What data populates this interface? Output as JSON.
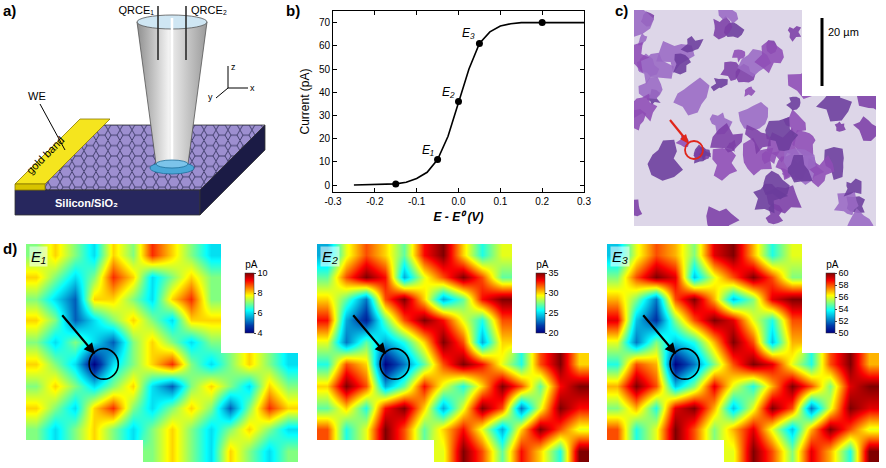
{
  "panel_labels": [
    "a)",
    "b)",
    "c)",
    "d)"
  ],
  "diagram": {
    "labels": {
      "qrce1": "QRCE₁",
      "qrce2": "QRCE₂",
      "we": "WE",
      "band": "gold band",
      "substrate": "Silicon/SiO₂",
      "axis_z": "z",
      "axis_y": "y",
      "axis_x": "x"
    }
  },
  "micrograph": {
    "scale_bar": "20 µm"
  },
  "chart_data": [
    {
      "type": "line",
      "color": "#000000",
      "x": [
        -0.25,
        -0.2,
        -0.15,
        -0.125,
        -0.1,
        -0.075,
        -0.05,
        -0.025,
        0,
        0.025,
        0.05,
        0.075,
        0.1,
        0.125,
        0.15,
        0.2,
        0.25,
        0.3
      ],
      "values": [
        0,
        0.1,
        0.5,
        1.2,
        2.8,
        5.5,
        11,
        21,
        36,
        50,
        61,
        66,
        68.5,
        69.5,
        70,
        70,
        70,
        70
      ],
      "marker_points": {
        "x": [
          -0.15,
          -0.05,
          0,
          0.05,
          0.2
        ],
        "values": [
          0.5,
          11,
          36,
          61,
          70
        ]
      },
      "marker": "circle",
      "x_label": "E - E⁰ (V)",
      "y_label": "Current (pA)",
      "xlim": [
        -0.3,
        0.3
      ],
      "xticks": [
        -0.3,
        -0.2,
        -0.1,
        {
          "value": 0,
          "label": "0.0"
        },
        0.1,
        0.2,
        0.3
      ],
      "ylim": [
        -3,
        75
      ],
      "yticks": [
        0,
        10,
        20,
        30,
        40,
        50,
        60,
        70
      ],
      "grid": false,
      "annotations": [
        {
          "x": -0.05,
          "y": 11,
          "text": "E₁"
        },
        {
          "x": 0,
          "y": 36,
          "text": "E₂"
        },
        {
          "x": 0.05,
          "y": 61,
          "text": "E₃"
        }
      ]
    },
    {
      "type": "heatmap",
      "title": "E₁",
      "tick_labels": false,
      "color_range": [
        4,
        10
      ],
      "color_ticks": [
        4,
        6,
        8,
        10
      ],
      "color_title": "pA",
      "cells": [
        [
          7,
          8,
          7,
          6,
          8,
          7,
          9,
          8,
          7,
          6,
          null,
          null,
          null,
          null
        ],
        [
          8,
          7,
          6,
          7,
          9,
          8,
          6,
          7,
          8,
          7,
          null,
          null,
          null,
          null
        ],
        [
          7,
          6,
          5,
          8,
          8,
          7,
          6,
          8,
          9,
          7,
          null,
          null,
          null,
          null
        ],
        [
          8,
          7,
          5,
          6,
          7,
          8,
          7,
          6,
          8,
          8,
          null,
          null,
          null,
          null
        ],
        [
          7,
          6,
          7,
          6,
          5,
          7,
          8,
          7,
          6,
          7,
          null,
          null,
          null,
          null
        ],
        [
          8,
          7,
          6,
          4,
          6,
          7,
          8,
          9,
          7,
          6,
          7,
          8,
          7,
          6
        ],
        [
          7,
          8,
          7,
          6,
          7,
          8,
          6,
          5,
          7,
          8,
          7,
          6,
          8,
          7
        ],
        [
          8,
          7,
          6,
          8,
          9,
          7,
          6,
          7,
          8,
          7,
          5,
          7,
          9,
          8
        ],
        [
          7,
          6,
          7,
          8,
          7,
          6,
          7,
          8,
          7,
          6,
          7,
          8,
          7,
          6
        ],
        [
          null,
          null,
          null,
          null,
          null,
          null,
          7,
          8,
          7,
          6,
          8,
          7,
          6,
          7
        ]
      ]
    },
    {
      "type": "heatmap",
      "title": "E₂",
      "tick_labels": false,
      "color_range": [
        20,
        35
      ],
      "color_ticks": [
        20,
        25,
        30,
        35
      ],
      "color_title": "pA",
      "cells": [
        [
          24,
          29,
          32,
          30,
          27,
          33,
          35,
          30,
          26,
          29,
          null,
          null,
          null,
          null
        ],
        [
          27,
          32,
          35,
          33,
          24,
          29,
          32,
          35,
          32,
          27,
          null,
          null,
          null,
          null
        ],
        [
          30,
          27,
          23,
          32,
          35,
          30,
          24,
          27,
          33,
          35,
          null,
          null,
          null,
          null
        ],
        [
          33,
          24,
          21,
          27,
          32,
          35,
          33,
          29,
          26,
          32,
          null,
          null,
          null,
          null
        ],
        [
          29,
          23,
          27,
          24,
          26,
          30,
          35,
          32,
          24,
          30,
          null,
          null,
          null,
          null
        ],
        [
          26,
          32,
          30,
          20,
          23,
          27,
          32,
          35,
          33,
          29,
          26,
          32,
          35,
          30
        ],
        [
          30,
          35,
          32,
          24,
          27,
          33,
          29,
          26,
          30,
          35,
          32,
          27,
          33,
          35
        ],
        [
          27,
          30,
          26,
          33,
          35,
          30,
          24,
          29,
          35,
          32,
          23,
          29,
          35,
          33
        ],
        [
          32,
          26,
          29,
          35,
          32,
          27,
          30,
          33,
          29,
          24,
          30,
          35,
          32,
          29
        ],
        [
          null,
          null,
          null,
          null,
          null,
          null,
          29,
          35,
          32,
          27,
          33,
          30,
          26,
          35
        ]
      ]
    },
    {
      "type": "heatmap",
      "title": "E₃",
      "tick_labels": false,
      "color_range": [
        50,
        60
      ],
      "color_ticks": [
        50,
        52,
        54,
        56,
        58,
        60
      ],
      "color_title": "pA",
      "cells": [
        [
          53,
          56,
          58,
          57,
          55,
          59,
          60,
          57,
          54,
          56,
          null,
          null,
          null,
          null
        ],
        [
          55,
          58,
          60,
          59,
          53,
          56,
          58,
          60,
          58,
          55,
          null,
          null,
          null,
          null
        ],
        [
          57,
          55,
          52,
          58,
          60,
          57,
          53,
          55,
          59,
          60,
          null,
          null,
          null,
          null
        ],
        [
          59,
          53,
          51,
          55,
          58,
          60,
          59,
          56,
          54,
          58,
          null,
          null,
          null,
          null
        ],
        [
          56,
          52,
          55,
          53,
          54,
          57,
          60,
          58,
          53,
          57,
          null,
          null,
          null,
          null
        ],
        [
          54,
          58,
          57,
          50,
          52,
          55,
          58,
          60,
          59,
          56,
          54,
          58,
          60,
          57
        ],
        [
          57,
          60,
          58,
          53,
          55,
          59,
          56,
          54,
          57,
          60,
          58,
          55,
          59,
          60
        ],
        [
          55,
          57,
          54,
          59,
          60,
          57,
          53,
          56,
          60,
          58,
          52,
          56,
          60,
          59
        ],
        [
          58,
          54,
          56,
          60,
          58,
          55,
          57,
          59,
          56,
          53,
          57,
          60,
          58,
          56
        ],
        [
          null,
          null,
          null,
          null,
          null,
          null,
          56,
          60,
          58,
          55,
          59,
          57,
          54,
          60
        ]
      ]
    }
  ]
}
